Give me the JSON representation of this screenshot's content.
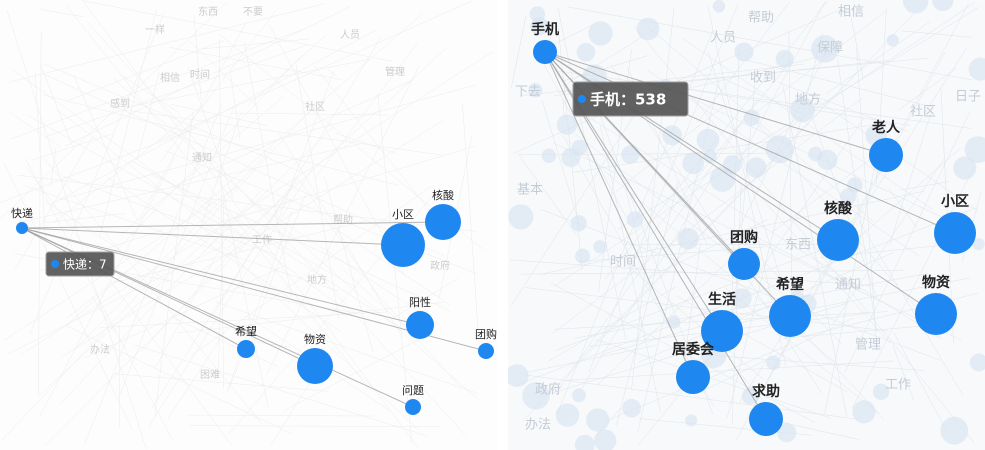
{
  "panels": [
    {
      "nodes": [
        {
          "label": "快递"
        },
        {
          "label": "小区"
        },
        {
          "label": "核酸"
        },
        {
          "label": "阳性"
        },
        {
          "label": "团购"
        },
        {
          "label": "希望"
        },
        {
          "label": "物资"
        },
        {
          "label": "问题"
        }
      ],
      "tooltip": {
        "text": "快递：7"
      },
      "background_labels": [
        "一样",
        "东西",
        "不要",
        "人员",
        "管理",
        "感到",
        "相信",
        "时间",
        "社区",
        "通知",
        "帮助",
        "工作",
        "地方",
        "政府",
        "困难",
        "办法"
      ]
    },
    {
      "nodes": [
        {
          "label": "手机"
        },
        {
          "label": "老人"
        },
        {
          "label": "核酸"
        },
        {
          "label": "小区"
        },
        {
          "label": "团购"
        },
        {
          "label": "希望"
        },
        {
          "label": "生活"
        },
        {
          "label": "物资"
        },
        {
          "label": "居委会"
        },
        {
          "label": "求助"
        }
      ],
      "tooltip": {
        "text": "手机：538"
      },
      "background_labels": [
        "帮助",
        "相信",
        "保障",
        "人员",
        "下去",
        "地方",
        "社区",
        "日子",
        "东西",
        "时间",
        "通知",
        "政府",
        "管理",
        "工作",
        "办法",
        "基本",
        "收到"
      ]
    }
  ]
}
